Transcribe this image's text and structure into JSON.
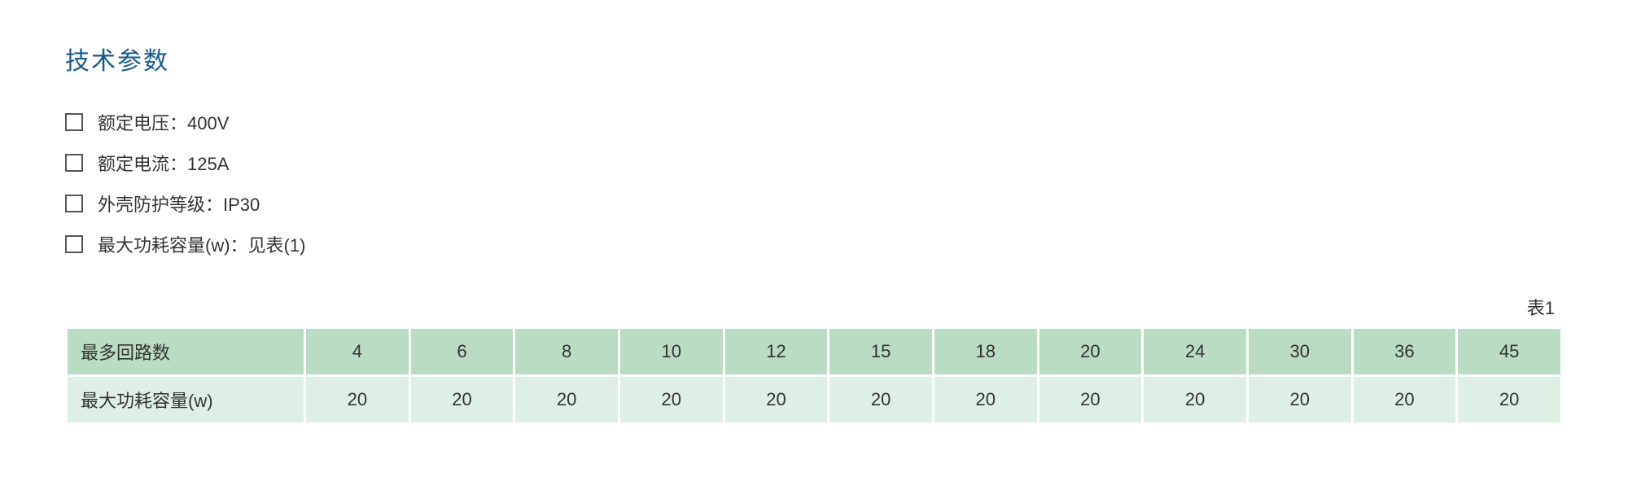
{
  "title": "技术参数",
  "specs": [
    {
      "text": "额定电压：400V"
    },
    {
      "text": "额定电流：125A"
    },
    {
      "text": "外壳防护等级：IP30"
    },
    {
      "text": "最大功耗容量(w)：见表(1)"
    }
  ],
  "table": {
    "label": "表1",
    "row1_header": "最多回路数",
    "row1_values": [
      "4",
      "6",
      "8",
      "10",
      "12",
      "15",
      "18",
      "20",
      "24",
      "30",
      "36",
      "45"
    ],
    "row2_header": "最大功耗容量(w)",
    "row2_values": [
      "20",
      "20",
      "20",
      "20",
      "20",
      "20",
      "20",
      "20",
      "20",
      "20",
      "20",
      "20"
    ],
    "colors": {
      "header_bg": "#b9dcc3",
      "data_bg": "#def0e4",
      "title_color": "#1a5a8a",
      "text_color": "#333333"
    },
    "fontsize": 22
  }
}
